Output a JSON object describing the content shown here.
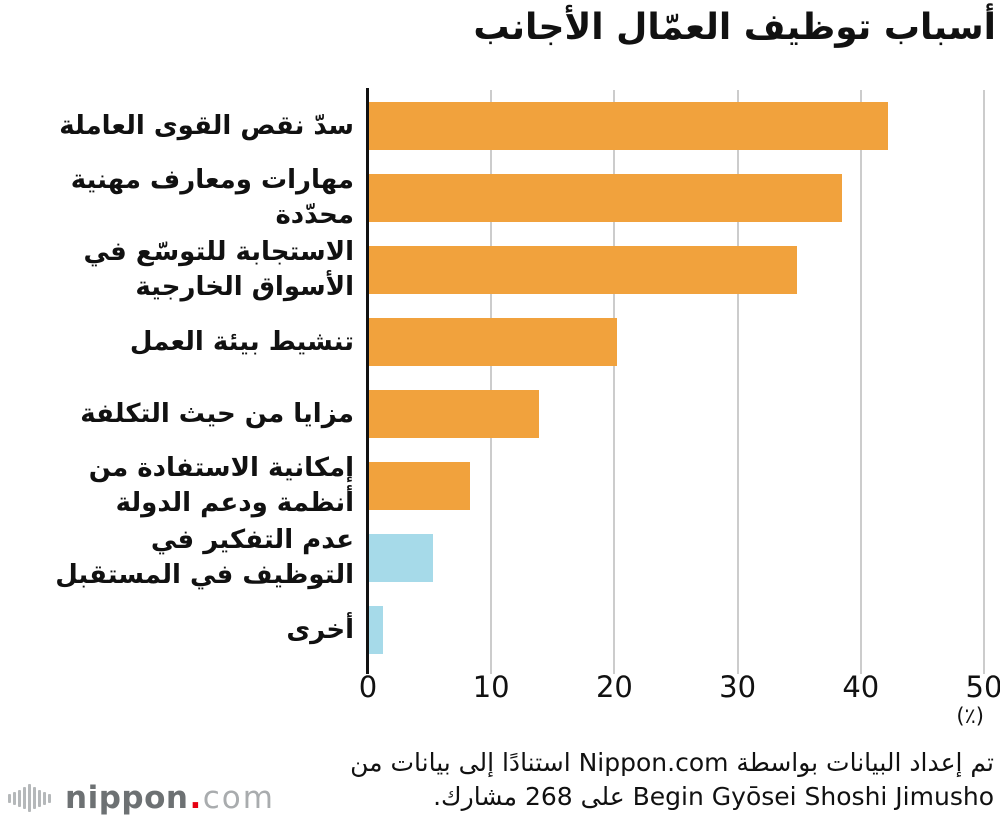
{
  "title": "أسباب توظيف العمّال الأجانب",
  "colors": {
    "bar_orange": "#F1A23D",
    "bar_blue": "#A6DAE9",
    "gridline": "#CCCCCC",
    "axis": "#111111",
    "text": "#111111",
    "logo_gray": "#6D7173",
    "logo_light_gray": "#A9ACAE",
    "logo_red": "#E60012",
    "logo_icon_gray": "#B5B8BA"
  },
  "chart_data": {
    "type": "bar",
    "orientation": "horizontal",
    "title": "أسباب توظيف العمّال الأجانب",
    "categories": [
      "سدّ نقص القوى العاملة",
      "مهارات ومعارف مهنية محدّدة",
      "الاستجابة للتوسّع في\nالأسواق الخارجية",
      "تنشيط بيئة العمل",
      "مزايا من حيث التكلفة",
      "إمكانية الاستفادة من\nأنظمة ودعم الدولة",
      "عدم التفكير في\nالتوظيف في المستقبل",
      "أخرى"
    ],
    "values": [
      42.1,
      38.4,
      34.7,
      20.1,
      13.8,
      8.2,
      5.2,
      1.1
    ],
    "bar_colors": [
      "orange",
      "orange",
      "orange",
      "orange",
      "orange",
      "orange",
      "blue",
      "blue"
    ],
    "xlim": [
      0,
      50
    ],
    "x_ticks": [
      0,
      10,
      20,
      30,
      40,
      50
    ],
    "x_tick_labels": [
      "0",
      "10",
      "20",
      "30",
      "40",
      "50"
    ],
    "x_unit_label": "(٪)",
    "grid": "vertical",
    "legend": "none"
  },
  "source": {
    "line1": "تم إعداد البيانات بواسطة Nippon.com استنادًا إلى بيانات من",
    "line2": "Begin Gyōsei Shoshi Jimusho على 268 مشارك."
  },
  "logo": {
    "brand": "nippon",
    "dot": ".",
    "suffix": "com"
  }
}
